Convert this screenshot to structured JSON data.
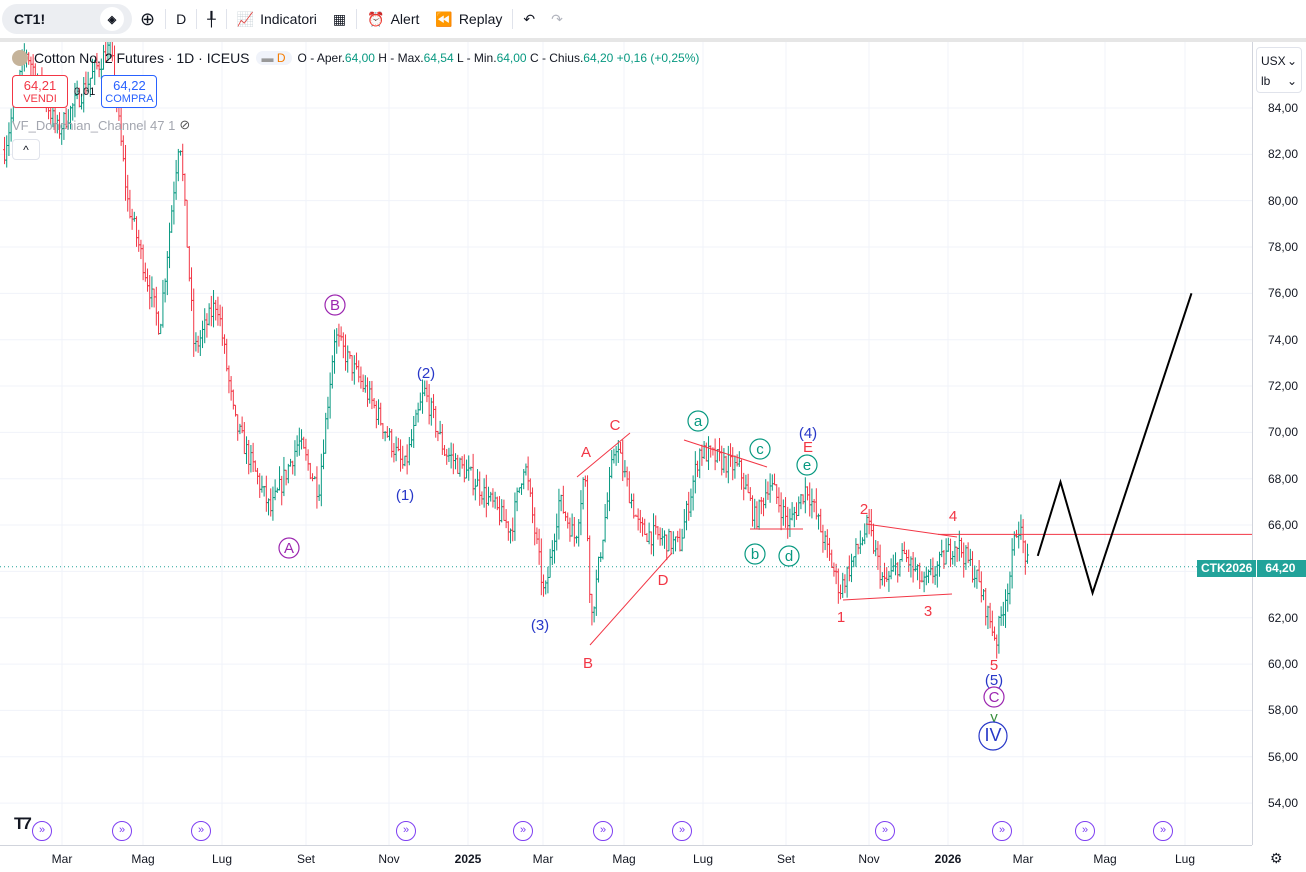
{
  "toolbar": {
    "symbol": "CT1!",
    "interval": "D",
    "indicators": "Indicatori",
    "alert": "Alert",
    "replay": "Replay"
  },
  "legend": {
    "title": "Cotton No. 2 Futures · 1D · ICEUS",
    "badge": "D",
    "o_label": "O - Aper.",
    "o": "64,00",
    "h_label": "H - Max.",
    "h": "64,54",
    "l_label": "L - Min.",
    "l": "64,00",
    "c_label": "C - Chius.",
    "c": "64,20",
    "change": "+0,16 (+0,25%)"
  },
  "trade": {
    "sell_price": "64,21",
    "sell_label": "VENDI",
    "spread": "0,01",
    "buy_price": "64,22",
    "buy_label": "COMPRA"
  },
  "indicator": {
    "name": "VF_Donchian_Channel 47 1"
  },
  "price_axis": {
    "currency": "USX",
    "unit": "lb",
    "labels": [
      "84,00",
      "82,00",
      "80,00",
      "78,00",
      "76,00",
      "74,00",
      "72,00",
      "70,00",
      "68,00",
      "66,00",
      "64,00",
      "62,00",
      "60,00",
      "58,00",
      "56,00",
      "54,00"
    ],
    "last_symbol": "CTK2026",
    "last_price": "64,20"
  },
  "time_axis": {
    "labels": [
      "Mar",
      "Mag",
      "Lug",
      "Set",
      "Nov",
      "2025",
      "Mar",
      "Mag",
      "Lug",
      "Set",
      "Nov",
      "2026",
      "Mar",
      "Mag",
      "Lug"
    ]
  },
  "colors": {
    "up": "#089981",
    "down": "#f23645",
    "drawing_red": "#f23645",
    "projection": "#000000",
    "last_price": "#22a39a"
  },
  "price_path": [
    [
      "2024-01-18",
      82.2
    ],
    [
      "2024-02-04",
      86.5
    ],
    [
      "2024-02-28",
      83
    ],
    [
      "2024-04-07",
      86.7
    ],
    [
      "2024-04-20",
      80
    ],
    [
      "2024-05-14",
      74.5
    ],
    [
      "2024-05-29",
      83
    ],
    [
      "2024-06-10",
      73.5
    ],
    [
      "2024-06-27",
      75.7
    ],
    [
      "2024-07-10",
      70.5
    ],
    [
      "2024-08-07",
      66.6
    ],
    [
      "2024-08-28",
      69.6
    ],
    [
      "2024-09-13",
      67.5
    ],
    [
      "2024-09-25",
      74.2
    ],
    [
      "2024-10-22",
      71.4
    ],
    [
      "2024-11-17",
      68.4
    ],
    [
      "2024-12-02",
      71.8
    ],
    [
      "2024-12-17",
      69.2
    ],
    [
      "2025-01-10",
      67.9
    ],
    [
      "2025-02-07",
      65.8
    ],
    [
      "2025-02-17",
      68.8
    ],
    [
      "2025-03-02",
      62.8
    ],
    [
      "2025-03-13",
      67.1
    ],
    [
      "2025-03-25",
      65.4
    ],
    [
      "2025-04-02",
      68.4
    ],
    [
      "2025-04-07",
      61.9
    ],
    [
      "2025-04-25",
      69.6
    ],
    [
      "2025-05-13",
      65.8
    ],
    [
      "2025-06-13",
      65.1
    ],
    [
      "2025-06-28",
      69.2
    ],
    [
      "2025-07-28",
      68.4
    ],
    [
      "2025-08-10",
      66.2
    ],
    [
      "2025-08-20",
      67.9
    ],
    [
      "2025-09-05",
      66
    ],
    [
      "2025-09-18",
      67.7
    ],
    [
      "2025-10-13",
      63.2
    ],
    [
      "2025-11-04",
      66
    ],
    [
      "2025-11-16",
      63.4
    ],
    [
      "2025-12-01",
      64.7
    ],
    [
      "2025-12-16",
      63.4
    ],
    [
      "2026-01-10",
      65.3
    ],
    [
      "2026-01-25",
      63.8
    ],
    [
      "2026-02-10",
      61
    ],
    [
      "2026-02-13",
      61.9
    ],
    [
      "2026-02-20",
      63.8
    ],
    [
      "2026-02-26",
      66.2
    ],
    [
      "2026-03-04",
      64.1
    ]
  ],
  "projection": [
    [
      "2026-03-11",
      64.67
    ],
    [
      "2026-03-28",
      67.86
    ],
    [
      "2026-04-22",
      63.07
    ],
    [
      "2026-07-06",
      76.0
    ]
  ],
  "resistance_level": 65.6,
  "wave_labels": [
    {
      "text": "A",
      "color": "#9c27b0",
      "circle": true
    },
    {
      "text": "B",
      "color": "#9c27b0",
      "circle": true
    },
    {
      "text": "(2)",
      "color": "#2737c8",
      "circle": false
    },
    {
      "text": "(1)",
      "color": "#2737c8",
      "circle": false
    },
    {
      "text": "(3)",
      "color": "#2737c8",
      "circle": false
    },
    {
      "text": "A",
      "color": "#f23645",
      "circle": false
    },
    {
      "text": "C",
      "color": "#f23645",
      "circle": false
    },
    {
      "text": "B",
      "color": "#f23645",
      "circle": false
    },
    {
      "text": "D",
      "color": "#f23645",
      "circle": false
    },
    {
      "text": "a",
      "color": "#089981",
      "circle": true
    },
    {
      "text": "c",
      "color": "#089981",
      "circle": true
    },
    {
      "text": "(4)",
      "color": "#2737c8",
      "circle": false
    },
    {
      "text": "E",
      "color": "#f23645",
      "circle": false
    },
    {
      "text": "e",
      "color": "#089981",
      "circle": true
    },
    {
      "text": "b",
      "color": "#089981",
      "circle": true
    },
    {
      "text": "d",
      "color": "#089981",
      "circle": true
    },
    {
      "text": "2",
      "color": "#f23645",
      "circle": false
    },
    {
      "text": "1",
      "color": "#f23645",
      "circle": false
    },
    {
      "text": "4",
      "color": "#f23645",
      "circle": false
    },
    {
      "text": "3",
      "color": "#f23645",
      "circle": false
    },
    {
      "text": "5",
      "color": "#f23645",
      "circle": false
    },
    {
      "text": "(5)",
      "color": "#2737c8",
      "circle": false
    },
    {
      "text": "C",
      "color": "#9c27b0",
      "circle": true
    },
    {
      "text": "y",
      "color": "#388e3c",
      "circle": false
    },
    {
      "text": "IV",
      "color": "#2737c8",
      "circle": true
    }
  ]
}
